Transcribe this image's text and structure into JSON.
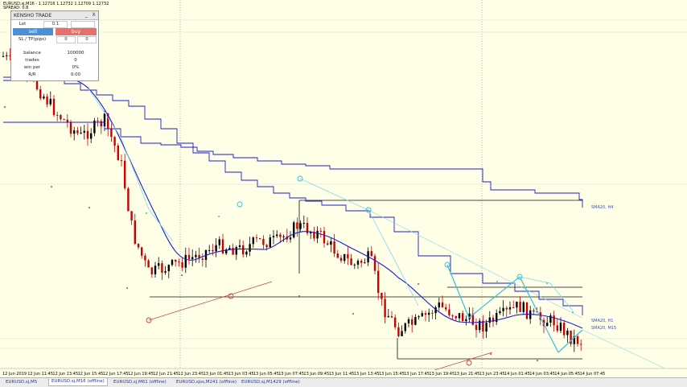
{
  "window": {
    "symbol_line": "EURUSD,sj,M16 - 1.12716 1.12732 1.12709 1.12732",
    "spread_line": "SPREAD: 0.8"
  },
  "trade_panel": {
    "title": "KENSHO TRADE",
    "minimize": "_",
    "close": "X",
    "lot_label": "Lot",
    "lot_value": "0.1",
    "sell_label": "sell",
    "buy_label": "buy",
    "sltp_label": "SL / TP(pips)",
    "sl_value": "0",
    "tp_value": "0",
    "balance_label": "balance",
    "balance_value": "100000",
    "trades_label": "trades",
    "trades_value": "0",
    "win_per_label": "win per",
    "win_per_value": "0%",
    "rr_label": "R/R",
    "rr_value": "0.00",
    "colors": {
      "sell": "#4a90d9",
      "buy": "#e8706a"
    }
  },
  "indicators": {
    "h4_label": "SMA20, H4",
    "h1_label": "SMA20, H1",
    "m15_label": "SMA20, M15"
  },
  "time_axis": [
    "12 Jun 2019",
    "12 Jun 11:45",
    "12 Jun 13:45",
    "12 Jun 15:45",
    "12 Jun 17:45",
    "12 Jun 19:45",
    "12 Jun 21:45",
    "12 Jun 23:45",
    "13 Jun 01:45",
    "13 Jun 03:45",
    "13 Jun 05:45",
    "13 Jun 07:45",
    "13 Jun 09:45",
    "13 Jun 11:45",
    "13 Jun 13:45",
    "13 Jun 15:45",
    "13 Jun 17:45",
    "13 Jun 19:45",
    "13 Jun 21:45",
    "13 Jun 23:45",
    "14 Jun 01:45",
    "14 Jun 03:45",
    "14 Jun 05:45",
    "14 Jun 07:45"
  ],
  "tabs": [
    {
      "label": "EURUSD,sj,M5",
      "active": false
    },
    {
      "label": "EURUSD,sj,M16 (offline)",
      "active": true
    },
    {
      "label": "EURUSD,sj,M61 (offline)",
      "active": false
    },
    {
      "label": "EURUSD,sjss,M241 (offline)",
      "active": false
    },
    {
      "label": "EURUSD,sj,M1429 (offline)",
      "active": false
    }
  ],
  "colors": {
    "background": "#ffffe8",
    "bull_candle": "#000000",
    "bear_candle": "#cc0000",
    "sma_line": "#1a1adf",
    "trend_line": "#7fd7ea",
    "signal_line": "#d04040"
  }
}
